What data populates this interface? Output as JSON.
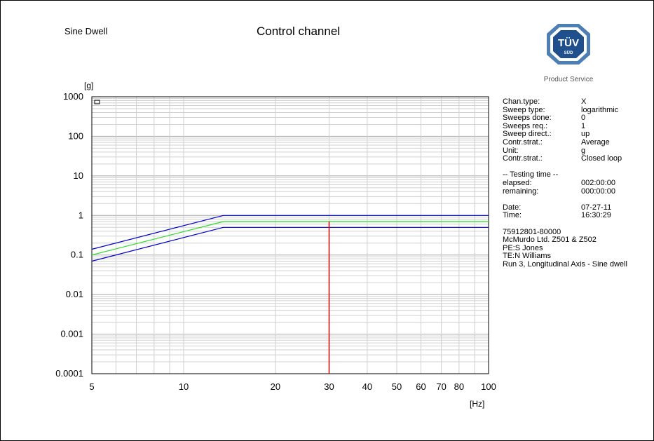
{
  "header": {
    "mode": "Sine Dwell",
    "title": "Control channel"
  },
  "logo": {
    "mark": "TÜV",
    "sub": "SÜD",
    "caption": "Product Service"
  },
  "info": {
    "params": [
      {
        "key": "Chan.type:",
        "value": "X"
      },
      {
        "key": "Sweep type:",
        "value": "logarithmic"
      },
      {
        "key": "Sweeps done:",
        "value": "0"
      },
      {
        "key": "Sweeps req.:",
        "value": "1"
      },
      {
        "key": "Sweep direct.:",
        "value": "up"
      },
      {
        "key": "Contr.strat.:",
        "value": "Average"
      },
      {
        "key": "Unit:",
        "value": "g"
      },
      {
        "key": "Contr.strat.:",
        "value": "Closed loop"
      }
    ],
    "testing_time_header": "-- Testing time --",
    "time": [
      {
        "key": "elapsed:",
        "value": "002:00:00"
      },
      {
        "key": "remaining:",
        "value": "000:00:00"
      }
    ],
    "date": [
      {
        "key": "Date:",
        "value": "07-27-11"
      },
      {
        "key": "Time:",
        "value": "16:30:29"
      }
    ],
    "notes": [
      "75912801-80000",
      "McMurdo Ltd. Z501 & Z502",
      "PE:S Jones",
      "TE:N Williams",
      "Run 3, Longitudinal Axis - Sine dwell"
    ]
  },
  "chart_data": {
    "type": "line",
    "xlabel": "[Hz]",
    "ylabel": "[g]",
    "xscale": "log",
    "yscale": "log",
    "xlim": [
      5,
      100
    ],
    "ylim": [
      0.0001,
      1000
    ],
    "xticks": [
      5,
      10,
      20,
      30,
      40,
      50,
      60,
      70,
      80,
      100
    ],
    "xtick_labels": [
      "5",
      "10",
      "20",
      "30",
      "40",
      "50",
      "60",
      "70",
      "80",
      "100"
    ],
    "yticks": [
      0.0001,
      0.001,
      0.01,
      0.1,
      1,
      10,
      100,
      1000
    ],
    "ytick_labels": [
      "0.0001",
      "0.001",
      "0.01",
      "0.1",
      "1",
      "10",
      "100",
      "1000"
    ],
    "grid": true,
    "series": [
      {
        "color": "#0000cc",
        "x": [
          5,
          13.5,
          100
        ],
        "y": [
          0.14,
          1.0,
          1.0
        ]
      },
      {
        "color": "#22dd22",
        "x": [
          5,
          13.5,
          100
        ],
        "y": [
          0.1,
          0.7,
          0.7
        ]
      },
      {
        "color": "#0000cc",
        "x": [
          5,
          13.5,
          100
        ],
        "y": [
          0.07,
          0.5,
          0.5
        ]
      }
    ],
    "markers": [
      {
        "type": "vertical",
        "x": 30,
        "y_from": 0.0001,
        "y_to": 0.7,
        "color": "#dd0000"
      }
    ]
  }
}
